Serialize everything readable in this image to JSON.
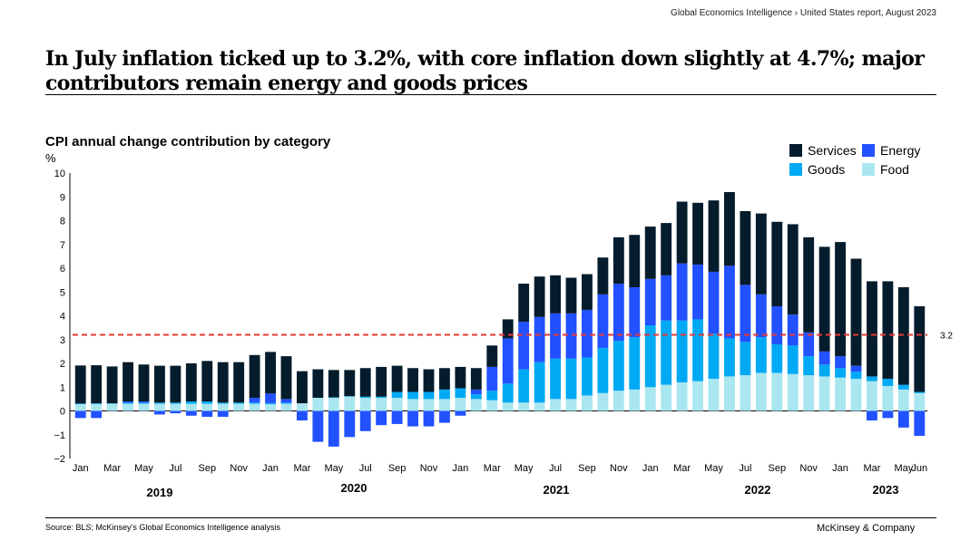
{
  "breadcrumb": "Global Economics Intelligence  › United States report, August 2023",
  "title": "In July inflation ticked up to 3.2%, with core inflation down slightly at 4.7%; major contributors remain energy and goods prices",
  "source": "Source: BLS; McKinsey’s Global Economics Intelligence analysis",
  "brand": "McKinsey & Company",
  "legend": [
    {
      "name": "Services",
      "color": "#051c2c"
    },
    {
      "name": "Energy",
      "color": "#2251ff"
    },
    {
      "name": "Goods",
      "color": "#00a9f4"
    },
    {
      "name": "Food",
      "color": "#aae6f0"
    }
  ],
  "chart_data": {
    "type": "bar",
    "stacked": true,
    "title": "CPI annual change contribution by category",
    "ylabel": "%",
    "ylim": [
      -2,
      10
    ],
    "yticks": [
      "10",
      "9",
      "8",
      "7",
      "6",
      "5",
      "4",
      "3",
      "2",
      "1",
      "0",
      "−1",
      "−2"
    ],
    "legend_position": "top-right",
    "x_tick_labels": [
      "Jan",
      "Mar",
      "May",
      "Jul",
      "Sep",
      "Nov",
      "Jan",
      "Mar",
      "May",
      "Jul",
      "Sep",
      "Nov",
      "Jan",
      "Mar",
      "May",
      "Jul",
      "Sep",
      "Nov",
      "Jan",
      "Mar",
      "May",
      "Jul",
      "Sep",
      "Nov",
      "Jan",
      "Mar",
      "May",
      "Jun"
    ],
    "years": [
      "2019",
      "2020",
      "2021",
      "2022",
      "2023"
    ],
    "reference_line": {
      "value": 3.2,
      "label": "3.2",
      "color": "#e53935"
    },
    "categories": [
      "Jan 2019",
      "Feb 2019",
      "Mar 2019",
      "Apr 2019",
      "May 2019",
      "Jun 2019",
      "Jul 2019",
      "Aug 2019",
      "Sep 2019",
      "Oct 2019",
      "Nov 2019",
      "Dec 2019",
      "Jan 2020",
      "Feb 2020",
      "Mar 2020",
      "Apr 2020",
      "May 2020",
      "Jun 2020",
      "Jul 2020",
      "Aug 2020",
      "Sep 2020",
      "Oct 2020",
      "Nov 2020",
      "Dec 2020",
      "Jan 2021",
      "Feb 2021",
      "Mar 2021",
      "Apr 2021",
      "May 2021",
      "Jun 2021",
      "Jul 2021",
      "Aug 2021",
      "Sep 2021",
      "Oct 2021",
      "Nov 2021",
      "Dec 2021",
      "Jan 2022",
      "Feb 2022",
      "Mar 2022",
      "Apr 2022",
      "May 2022",
      "Jun 2022",
      "Jul 2022",
      "Aug 2022",
      "Sep 2022",
      "Oct 2022",
      "Nov 2022",
      "Dec 2022",
      "Jan 2023",
      "Feb 2023",
      "Mar 2023",
      "Apr 2023",
      "May 2023",
      "Jun 2023"
    ],
    "series": [
      {
        "name": "Food",
        "color": "#aae6f0",
        "values": [
          0.28,
          0.29,
          0.3,
          0.3,
          0.3,
          0.3,
          0.3,
          0.3,
          0.3,
          0.3,
          0.3,
          0.3,
          0.28,
          0.3,
          0.32,
          0.55,
          0.55,
          0.6,
          0.55,
          0.55,
          0.55,
          0.5,
          0.5,
          0.5,
          0.55,
          0.5,
          0.45,
          0.35,
          0.35,
          0.35,
          0.5,
          0.5,
          0.65,
          0.75,
          0.85,
          0.9,
          1.0,
          1.1,
          1.2,
          1.25,
          1.35,
          1.45,
          1.5,
          1.6,
          1.6,
          1.55,
          1.5,
          1.45,
          1.4,
          1.35,
          1.25,
          1.05,
          0.9,
          0.75
        ]
      },
      {
        "name": "Goods",
        "color": "#00a9f4",
        "values": [
          0.03,
          0.03,
          0.02,
          0.05,
          0.05,
          0.05,
          0.05,
          0.1,
          0.1,
          0.05,
          0.05,
          0.05,
          0.05,
          0.05,
          0.0,
          0.0,
          0.02,
          0.02,
          0.05,
          0.05,
          0.25,
          0.3,
          0.3,
          0.4,
          0.4,
          0.2,
          0.4,
          0.8,
          1.4,
          1.7,
          1.7,
          1.7,
          1.6,
          1.9,
          2.1,
          2.2,
          2.6,
          2.7,
          2.6,
          2.6,
          1.9,
          1.6,
          1.4,
          1.5,
          1.2,
          1.2,
          0.8,
          0.5,
          0.4,
          0.3,
          0.2,
          0.3,
          0.2,
          0.05
        ]
      },
      {
        "name": "Energy",
        "color": "#2251ff",
        "values": [
          -0.3,
          -0.3,
          0.0,
          0.05,
          0.05,
          -0.15,
          -0.1,
          -0.2,
          -0.25,
          -0.25,
          0.0,
          0.2,
          0.4,
          0.15,
          -0.4,
          -1.3,
          -1.5,
          -1.1,
          -0.85,
          -0.6,
          -0.55,
          -0.65,
          -0.65,
          -0.5,
          -0.2,
          0.2,
          1.0,
          1.9,
          2.0,
          1.9,
          1.9,
          1.9,
          2.0,
          2.25,
          2.4,
          2.1,
          1.95,
          1.9,
          2.4,
          2.3,
          2.6,
          3.05,
          2.4,
          1.8,
          1.6,
          1.3,
          1.0,
          0.55,
          0.5,
          0.25,
          -0.4,
          -0.3,
          -0.7,
          -1.05
        ]
      },
      {
        "name": "Services",
        "color": "#051c2c",
        "values": [
          1.6,
          1.6,
          1.55,
          1.65,
          1.55,
          1.55,
          1.55,
          1.6,
          1.7,
          1.7,
          1.7,
          1.8,
          1.75,
          1.8,
          1.35,
          1.2,
          1.15,
          1.1,
          1.2,
          1.25,
          1.1,
          1.0,
          0.95,
          0.9,
          0.9,
          0.9,
          0.9,
          0.8,
          1.6,
          1.7,
          1.6,
          1.5,
          1.5,
          1.55,
          1.95,
          2.2,
          2.2,
          2.2,
          2.6,
          2.6,
          3.0,
          3.1,
          3.1,
          3.4,
          3.55,
          3.8,
          4.0,
          4.4,
          4.8,
          4.5,
          4.0,
          4.1,
          4.1,
          3.6
        ]
      }
    ]
  }
}
